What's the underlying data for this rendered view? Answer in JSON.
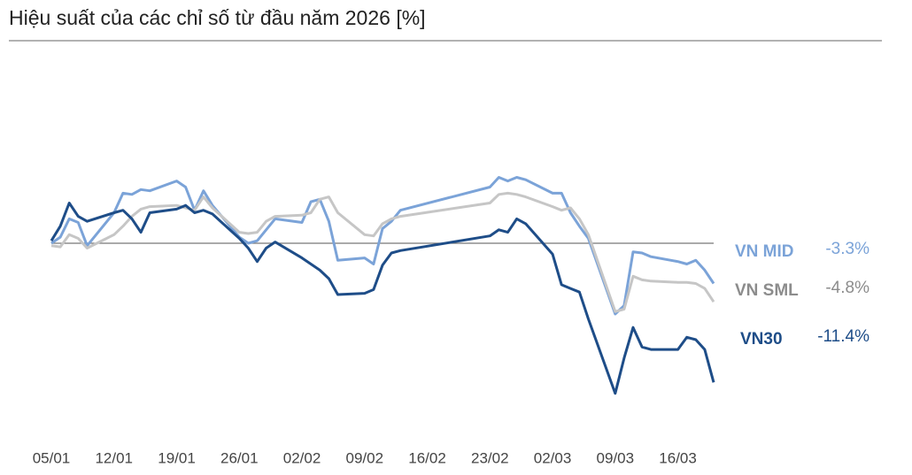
{
  "chart_data": {
    "type": "line",
    "title": "Hiệu suất của các chỉ số từ đầu năm 2026 [%]",
    "x": [
      "05/01",
      "06/01",
      "07/01",
      "08/01",
      "09/01",
      "12/01",
      "13/01",
      "14/01",
      "15/01",
      "16/01",
      "19/01",
      "20/01",
      "21/01",
      "22/01",
      "23/01",
      "26/01",
      "27/01",
      "28/01",
      "29/01",
      "30/01",
      "02/02",
      "03/02",
      "04/02",
      "05/02",
      "06/02",
      "09/02",
      "10/02",
      "11/02",
      "12/02",
      "13/02",
      "23/02",
      "24/02",
      "25/02",
      "26/02",
      "27/02",
      "02/03",
      "03/03",
      "04/03",
      "05/03",
      "06/03",
      "09/03",
      "10/03",
      "11/03",
      "12/03",
      "13/03",
      "16/03",
      "17/03",
      "18/03",
      "19/03",
      "20/03"
    ],
    "xlim": [
      "05/01",
      "20/03"
    ],
    "xticks": [
      "05/01",
      "12/01",
      "19/01",
      "26/01",
      "02/02",
      "09/02",
      "16/02",
      "23/02",
      "02/03",
      "09/03",
      "16/03"
    ],
    "ylim": [
      -14,
      8
    ],
    "baseline": 0,
    "series": [
      {
        "name": "VN MID",
        "color": "#7ba3d8",
        "label_color": "#7ba3d8",
        "values": [
          0,
          0.5,
          2.0,
          1.7,
          -0.2,
          2.5,
          4.1,
          4.0,
          4.4,
          4.3,
          5.1,
          4.6,
          2.7,
          4.3,
          3.1,
          0.5,
          0,
          0.2,
          1.1,
          2.0,
          1.7,
          3.4,
          3.6,
          1.8,
          -1.4,
          -1.2,
          -1.7,
          1.2,
          1.8,
          2.7,
          4.6,
          5.4,
          5.1,
          5.4,
          5.2,
          4.1,
          4.1,
          2.5,
          1.4,
          0.4,
          -5.8,
          -5.1,
          -0.7,
          -0.8,
          -1.1,
          -1.5,
          -1.7,
          -1.4,
          -2.2,
          -3.3
        ],
        "value_labels": [
          null,
          null,
          null,
          null,
          null,
          null,
          null,
          null,
          null,
          null,
          null,
          null,
          null,
          null,
          null,
          null,
          null,
          null,
          null,
          null,
          null,
          null,
          null,
          null,
          null,
          null,
          null,
          null,
          null,
          null,
          null,
          null,
          null,
          null,
          null,
          null,
          null,
          null,
          null,
          null,
          null,
          null,
          null,
          null,
          null,
          null,
          null,
          null,
          null,
          "-3.3%"
        ]
      },
      {
        "name": "VN SML",
        "color": "#c6c6c6",
        "label_color": "#8c8c8c",
        "values": [
          -0.2,
          -0.3,
          0.7,
          0.4,
          -0.4,
          0.7,
          1.4,
          2.2,
          2.8,
          3.0,
          3.1,
          2.9,
          2.7,
          3.8,
          2.9,
          0.9,
          0.8,
          0.9,
          1.8,
          2.2,
          2.3,
          2.5,
          3.6,
          3.8,
          2.5,
          0.7,
          0.6,
          1.6,
          2.0,
          2.2,
          3.3,
          4.0,
          4.1,
          4.0,
          3.8,
          3.0,
          2.7,
          2.9,
          2.0,
          0.7,
          -5.6,
          -5.4,
          -2.7,
          -3.0,
          -3.1,
          -3.2,
          -3.2,
          -3.3,
          -3.7,
          -4.8
        ],
        "value_labels": [
          null,
          null,
          null,
          null,
          null,
          null,
          null,
          null,
          null,
          null,
          null,
          null,
          null,
          null,
          null,
          null,
          null,
          null,
          null,
          null,
          null,
          null,
          null,
          null,
          null,
          null,
          null,
          null,
          null,
          null,
          null,
          null,
          null,
          null,
          null,
          null,
          null,
          null,
          null,
          null,
          null,
          null,
          null,
          null,
          null,
          null,
          null,
          null,
          null,
          "-4.8%"
        ]
      },
      {
        "name": "VN30",
        "color": "#1e4d88",
        "label_color": "#1e4d88",
        "values": [
          0.2,
          1.4,
          3.3,
          2.2,
          1.8,
          2.5,
          2.7,
          2.0,
          0.9,
          2.5,
          2.8,
          3.1,
          2.5,
          2.7,
          2.4,
          0.4,
          -0.4,
          -1.5,
          -0.4,
          0.1,
          -1.2,
          -1.7,
          -2.2,
          -2.9,
          -4.2,
          -4.1,
          -3.8,
          -1.8,
          -0.8,
          -0.6,
          0.6,
          1.1,
          0.9,
          2.0,
          1.6,
          -0.9,
          -3.4,
          -3.7,
          -4.0,
          -6.2,
          -12.3,
          -9.4,
          -6.9,
          -8.5,
          -8.7,
          -8.7,
          -7.7,
          -7.9,
          -8.7,
          -11.4
        ],
        "value_labels": [
          null,
          null,
          null,
          null,
          null,
          null,
          null,
          null,
          null,
          null,
          null,
          null,
          null,
          null,
          null,
          null,
          null,
          null,
          null,
          null,
          null,
          null,
          null,
          null,
          null,
          null,
          null,
          null,
          null,
          null,
          null,
          null,
          null,
          null,
          null,
          null,
          null,
          null,
          null,
          null,
          null,
          null,
          null,
          null,
          null,
          null,
          null,
          null,
          null,
          "-11.4%"
        ]
      }
    ]
  }
}
